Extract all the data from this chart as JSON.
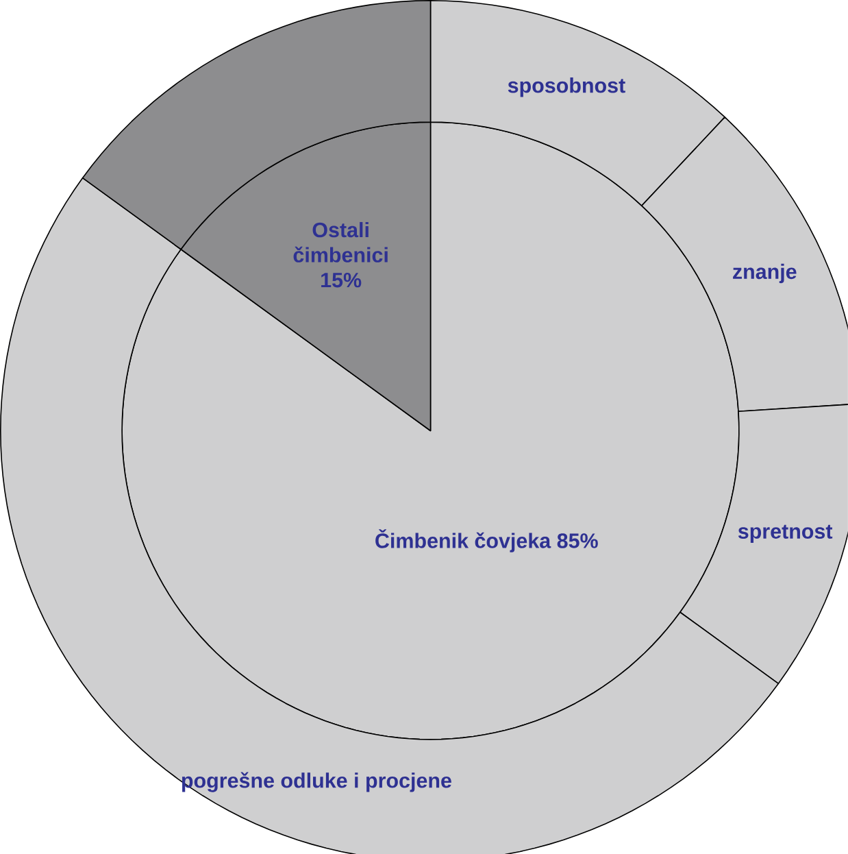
{
  "chart_data": [
    {
      "type": "pie",
      "categories": [
        "Čimbenik čovjeka",
        "Ostali čimbenici"
      ],
      "values": [
        85,
        15
      ],
      "value_labels": [
        "85%",
        "15%"
      ],
      "colors": [
        "#cfcfd0",
        "#8d8d8f"
      ]
    },
    {
      "type": "donut",
      "categories": [
        "sposobnost",
        "znanje",
        "spretnost",
        "pogrešne odluke i procjene",
        null
      ],
      "values": [
        12,
        12,
        11,
        50,
        15
      ],
      "colors": [
        "#cfcfd0",
        "#cfcfd0",
        "#cfcfd0",
        "#cfcfd0",
        "#8d8d8f"
      ]
    }
  ]
}
